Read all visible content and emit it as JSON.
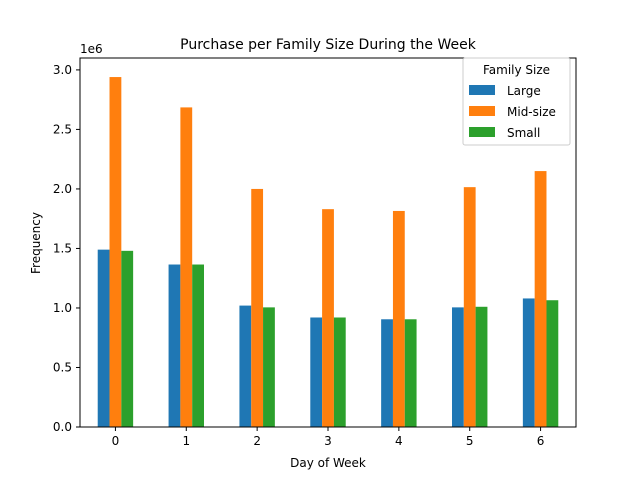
{
  "chart_data": {
    "type": "bar",
    "title": "Purchase per Family Size During the Week",
    "xlabel": "Day of Week",
    "ylabel": "Frequency",
    "y_offset_label": "1e6",
    "categories": [
      "0",
      "1",
      "2",
      "3",
      "4",
      "5",
      "6"
    ],
    "y_scale_multiplier": 1000000,
    "ylim": [
      0,
      3.1
    ],
    "y_ticks": [
      0.0,
      0.5,
      1.0,
      1.5,
      2.0,
      2.5,
      3.0
    ],
    "y_tick_labels": [
      "0.0",
      "0.5",
      "1.0",
      "1.5",
      "2.0",
      "2.5",
      "3.0"
    ],
    "legend": {
      "title": "Family Size",
      "placement": "top-right"
    },
    "series": [
      {
        "name": "Large",
        "color": "#1f77b4",
        "values": [
          1.49,
          1.365,
          1.02,
          0.92,
          0.905,
          1.005,
          1.08
        ]
      },
      {
        "name": "Mid-size",
        "color": "#ff7f0e",
        "values": [
          2.94,
          2.685,
          2.0,
          1.83,
          1.815,
          2.015,
          2.15
        ]
      },
      {
        "name": "Small",
        "color": "#2ca02c",
        "values": [
          1.48,
          1.365,
          1.005,
          0.92,
          0.905,
          1.01,
          1.065
        ]
      }
    ],
    "grid": false
  }
}
